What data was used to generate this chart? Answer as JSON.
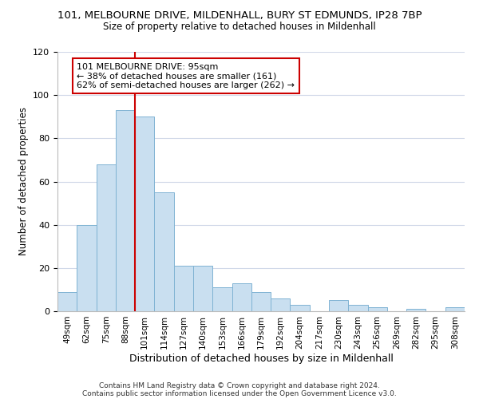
{
  "title_line1": "101, MELBOURNE DRIVE, MILDENHALL, BURY ST EDMUNDS, IP28 7BP",
  "title_line2": "Size of property relative to detached houses in Mildenhall",
  "xlabel": "Distribution of detached houses by size in Mildenhall",
  "ylabel": "Number of detached properties",
  "bar_labels": [
    "49sqm",
    "62sqm",
    "75sqm",
    "88sqm",
    "101sqm",
    "114sqm",
    "127sqm",
    "140sqm",
    "153sqm",
    "166sqm",
    "179sqm",
    "192sqm",
    "204sqm",
    "217sqm",
    "230sqm",
    "243sqm",
    "256sqm",
    "269sqm",
    "282sqm",
    "295sqm",
    "308sqm"
  ],
  "bar_values": [
    9,
    40,
    68,
    93,
    90,
    55,
    21,
    21,
    11,
    13,
    9,
    6,
    3,
    0,
    5,
    3,
    2,
    0,
    1,
    0,
    2
  ],
  "bar_color": "#c9dff0",
  "bar_edge_color": "#7fb3d3",
  "vline_color": "#cc0000",
  "annotation_text": "101 MELBOURNE DRIVE: 95sqm\n← 38% of detached houses are smaller (161)\n62% of semi-detached houses are larger (262) →",
  "annotation_box_color": "#ffffff",
  "annotation_box_edge": "#cc0000",
  "ylim": [
    0,
    120
  ],
  "yticks": [
    0,
    20,
    40,
    60,
    80,
    100,
    120
  ],
  "footer_line1": "Contains HM Land Registry data © Crown copyright and database right 2024.",
  "footer_line2": "Contains public sector information licensed under the Open Government Licence v3.0.",
  "background_color": "#ffffff",
  "grid_color": "#d0d8e8"
}
